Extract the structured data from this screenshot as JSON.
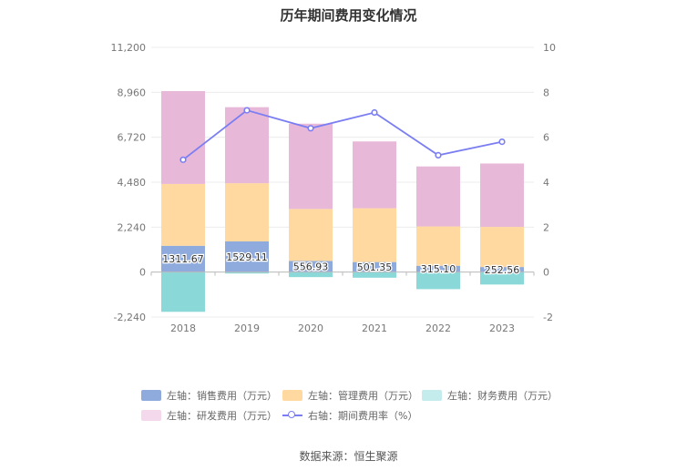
{
  "chart_data": {
    "type": "bar",
    "title": "历年期间费用变化情况",
    "categories": [
      "2018",
      "2019",
      "2020",
      "2021",
      "2022",
      "2023"
    ],
    "series": [
      {
        "name": "左轴：销售费用（万元）",
        "axis": "left",
        "color": "#8faadc",
        "values": [
          1311.67,
          1529.11,
          556.93,
          501.35,
          315.1,
          252.56
        ],
        "labels": [
          "1311.67",
          "1529.11",
          "556.93",
          "501.35",
          "315.10",
          "252.56"
        ]
      },
      {
        "name": "左轴：管理费用（万元）",
        "axis": "left",
        "color": "#ffd99f",
        "values": [
          3080,
          2900,
          2590,
          2680,
          1960,
          2000
        ]
      },
      {
        "name": "左轴：财务费用（万元）",
        "axis": "left",
        "color": "#8ad8d8",
        "values": [
          -1980,
          -70,
          -250,
          -280,
          -850,
          -620
        ]
      },
      {
        "name": "左轴：研发费用（万元）",
        "axis": "left",
        "color": "#e8b8d8",
        "values": [
          4630,
          3790,
          4250,
          3330,
          2990,
          3160
        ]
      },
      {
        "name": "右轴：期间费用率（%）",
        "axis": "right",
        "type": "line",
        "color": "#7b7ef2",
        "values": [
          5.0,
          7.2,
          6.4,
          7.1,
          5.2,
          5.8
        ]
      }
    ],
    "left_axis": {
      "min": -2240,
      "max": 11200,
      "ticks": [
        "11,200",
        "8,960",
        "6,720",
        "4,480",
        "2,240",
        "0",
        "-2,240"
      ]
    },
    "right_axis": {
      "min": -2,
      "max": 10,
      "ticks": [
        "10",
        "8",
        "6",
        "4",
        "2",
        "0",
        "-2"
      ]
    },
    "grid": true,
    "legend_position": "bottom"
  },
  "legend": [
    {
      "label": "左轴：销售费用（万元）",
      "color": "#8faadc"
    },
    {
      "label": "左轴：管理费用（万元）",
      "color": "#ffd99f"
    },
    {
      "label": "左轴：财务费用（万元）",
      "color": "#c5ecec"
    },
    {
      "label": "左轴：研发费用（万元）",
      "color": "#f4d8ec"
    },
    {
      "label": "右轴：期间费用率（%）",
      "color": "#7b7ef2"
    }
  ],
  "source": "数据来源：恒生聚源"
}
